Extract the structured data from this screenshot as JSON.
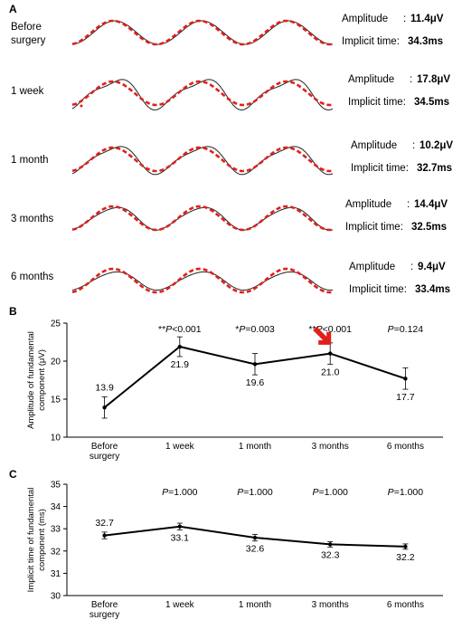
{
  "panel_letters": {
    "a": "A",
    "b": "B",
    "c": "C"
  },
  "waveforms": [
    {
      "label_lines": [
        "Before",
        "surgery"
      ],
      "amplitude_label": "Amplitude",
      "amplitude_value": "11.4μV",
      "implicit_label": "Implicit time:",
      "implicit_value": "34.3ms",
      "harmonic": 0.0,
      "trace_amplitude": 1.0
    },
    {
      "label_lines": [
        "1 week"
      ],
      "amplitude_label": "Amplitude",
      "amplitude_value": "17.8μV",
      "implicit_label": "Implicit time:",
      "implicit_value": "34.5ms",
      "harmonic": 0.45,
      "trace_amplitude": 1.35
    },
    {
      "label_lines": [
        "1 month"
      ],
      "amplitude_label": "Amplitude",
      "amplitude_value": "10.2μV",
      "implicit_label": "Implicit time:",
      "implicit_value": "32.7ms",
      "harmonic": 0.35,
      "trace_amplitude": 1.25
    },
    {
      "label_lines": [
        "3 months"
      ],
      "amplitude_label": "Amplitude",
      "amplitude_value": "14.4μV",
      "implicit_label": "Implicit time:",
      "implicit_value": "32.5ms",
      "harmonic": 0.2,
      "trace_amplitude": 1.0
    },
    {
      "label_lines": [
        "6 months"
      ],
      "amplitude_label": "Amplitude",
      "amplitude_value": "9.4μV",
      "implicit_label": "Implicit time:",
      "implicit_value": "33.4ms",
      "harmonic": 0.15,
      "trace_amplitude": 0.8
    }
  ],
  "colors": {
    "fit": "#e0201b",
    "trace": "#222222",
    "line": "#000000",
    "arrow": "#e0201b",
    "axis": "#000000"
  },
  "chart_data": [
    {
      "type": "line",
      "panel": "B",
      "categories": [
        "Before surgery",
        "1 week",
        "1 month",
        "3 months",
        "6 months"
      ],
      "category_lines": [
        [
          "Before",
          "surgery"
        ],
        [
          "1 week"
        ],
        [
          "1 month"
        ],
        [
          "3 months"
        ],
        [
          "6 months"
        ]
      ],
      "values": [
        13.9,
        21.9,
        19.6,
        21.0,
        17.7
      ],
      "value_labels": [
        "13.9",
        "21.9",
        "19.6",
        "21.0",
        "17.7"
      ],
      "errors": [
        1.4,
        1.3,
        1.4,
        1.4,
        1.4
      ],
      "p_values": [
        "",
        "**P<0.001",
        "*P=0.003",
        "**P<0.001",
        "P=0.124"
      ],
      "ylabel_lines": [
        "Amplitude of fundamental",
        "component (μV)"
      ],
      "ylim": [
        10,
        25
      ],
      "yticks": [
        10,
        15,
        20,
        25
      ],
      "arrow_at": "3 months",
      "grid": false
    },
    {
      "type": "line",
      "panel": "C",
      "categories": [
        "Before surgery",
        "1 week",
        "1 month",
        "3 months",
        "6 months"
      ],
      "category_lines": [
        [
          "Before",
          "surgery"
        ],
        [
          "1 week"
        ],
        [
          "1 month"
        ],
        [
          "3 months"
        ],
        [
          "6 months"
        ]
      ],
      "values": [
        32.7,
        33.1,
        32.6,
        32.3,
        32.2
      ],
      "value_labels": [
        "32.7",
        "33.1",
        "32.6",
        "32.3",
        "32.2"
      ],
      "errors": [
        0.15,
        0.15,
        0.15,
        0.12,
        0.12
      ],
      "p_values": [
        "",
        "P=1.000",
        "P=1.000",
        "P=1.000",
        "P=1.000"
      ],
      "ylabel_lines": [
        "Implicit time of fundamental",
        "component (ms)"
      ],
      "ylim": [
        30,
        35
      ],
      "yticks": [
        30,
        31,
        32,
        33,
        34,
        35
      ],
      "grid": false
    }
  ]
}
